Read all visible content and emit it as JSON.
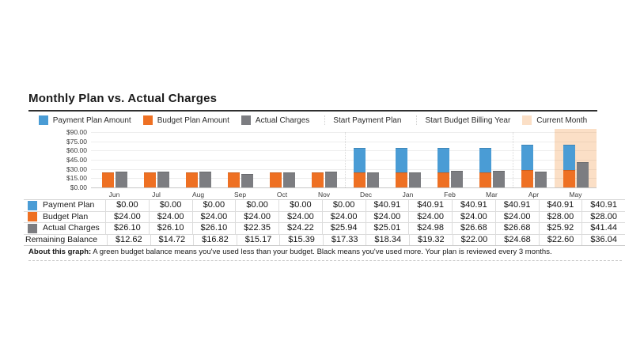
{
  "page": {
    "title": "Monthly Plan vs. Actual Charges",
    "about_label": "About this graph:",
    "about_text": " A green budget balance means you've used less than your budget. Black means you've used more. Your plan is reviewed every 3 months."
  },
  "colors": {
    "payment_blue": "#4A9CD5",
    "budget_orange": "#EE7023",
    "actual_gray": "#7C7D81",
    "current_month_peach": "#FBDFC6",
    "highlight_fill": "rgba(244,164,92,0.35)"
  },
  "legend": [
    {
      "label": "Payment Plan Amount",
      "swatch": "#4A9CD5",
      "type": "square"
    },
    {
      "label": "Budget Plan Amount",
      "swatch": "#EE7023",
      "type": "square"
    },
    {
      "label": "Actual Charges",
      "swatch": "#7C7D81",
      "type": "square"
    },
    {
      "label": "Start Payment Plan",
      "type": "line"
    },
    {
      "label": "Start Budget Billing Year",
      "type": "line"
    },
    {
      "label": "Current Month",
      "swatch": "#FBDFC6",
      "type": "square"
    }
  ],
  "chart_data": {
    "type": "bar",
    "title": "Monthly Plan vs. Actual Charges",
    "categories": [
      "Jun",
      "Jul",
      "Aug",
      "Sep",
      "Oct",
      "Nov",
      "Dec",
      "Jan",
      "Feb",
      "Mar",
      "Apr",
      "May"
    ],
    "series": [
      {
        "name": "Payment Plan Amount",
        "color": "#4A9CD5",
        "stack": "plan",
        "values": [
          0,
          0,
          0,
          0,
          0,
          0,
          40.91,
          40.91,
          40.91,
          40.91,
          40.91,
          40.91
        ]
      },
      {
        "name": "Budget Plan Amount",
        "color": "#EE7023",
        "stack": "plan",
        "values": [
          24.0,
          24.0,
          24.0,
          24.0,
          24.0,
          24.0,
          24.0,
          24.0,
          24.0,
          24.0,
          28.0,
          28.0
        ]
      },
      {
        "name": "Actual Charges",
        "color": "#7C7D81",
        "stack": "actual",
        "values": [
          26.1,
          26.1,
          26.1,
          22.35,
          24.22,
          25.94,
          25.01,
          24.98,
          26.68,
          26.68,
          25.92,
          41.44
        ]
      }
    ],
    "ylim": [
      0,
      90
    ],
    "y_ticks": [
      "$90.00",
      "$75.00",
      "$60.00",
      "$45.00",
      "$30.00",
      "$15.00",
      "$0.00"
    ],
    "grid": true,
    "legend_position": "top",
    "markers": [
      {
        "label": "Start Payment Plan",
        "after_category": "Nov"
      },
      {
        "label": "Start Budget Billing Year",
        "after_category": "Mar"
      }
    ],
    "highlight": {
      "label": "Current Month",
      "category": "May"
    }
  },
  "table": {
    "header": [
      "Jun",
      "Jul",
      "Aug",
      "Sep",
      "Oct",
      "Nov",
      "Dec",
      "Jan",
      "Feb",
      "Mar",
      "Apr",
      "May"
    ],
    "rows": [
      {
        "label": "Payment Plan",
        "swatch": "#4A9CD5",
        "values": [
          "$0.00",
          "$0.00",
          "$0.00",
          "$0.00",
          "$0.00",
          "$0.00",
          "$40.91",
          "$40.91",
          "$40.91",
          "$40.91",
          "$40.91",
          "$40.91"
        ]
      },
      {
        "label": "Budget Plan",
        "swatch": "#EE7023",
        "values": [
          "$24.00",
          "$24.00",
          "$24.00",
          "$24.00",
          "$24.00",
          "$24.00",
          "$24.00",
          "$24.00",
          "$24.00",
          "$24.00",
          "$28.00",
          "$28.00"
        ]
      },
      {
        "label": "Actual Charges",
        "swatch": "#7C7D81",
        "values": [
          "$26.10",
          "$26.10",
          "$26.10",
          "$22.35",
          "$24.22",
          "$25.94",
          "$25.01",
          "$24.98",
          "$26.68",
          "$26.68",
          "$25.92",
          "$41.44"
        ]
      },
      {
        "label": "Remaining Balance",
        "swatch": null,
        "values": [
          "$12.62",
          "$14.72",
          "$16.82",
          "$15.17",
          "$15.39",
          "$17.33",
          "$18.34",
          "$19.32",
          "$22.00",
          "$24.68",
          "$22.60",
          "$36.04"
        ]
      }
    ]
  }
}
